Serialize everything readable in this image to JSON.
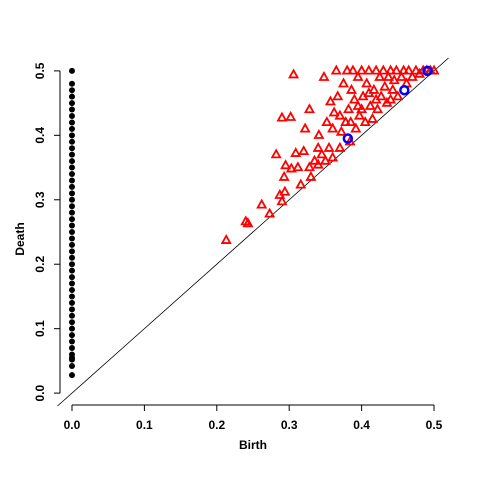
{
  "chart_data": {
    "type": "scatter",
    "x_label": "Birth",
    "y_label": "Death",
    "xlim": [
      -0.02,
      0.52
    ],
    "ylim": [
      -0.02,
      0.52
    ],
    "xticks": [
      {
        "value": 0,
        "label": "0.0"
      },
      0.1,
      0.2,
      0.3,
      0.4,
      0.5
    ],
    "yticks": [
      {
        "value": 0,
        "label": "0.0"
      },
      0.1,
      0.2,
      0.3,
      0.4,
      0.5
    ],
    "diagonal": true,
    "series": [
      {
        "color": "#000000",
        "marker": "circle",
        "x": [
          0,
          0,
          0,
          0,
          0,
          0,
          0,
          0,
          0,
          0,
          0,
          0,
          0,
          0,
          0,
          0,
          0,
          0,
          0,
          0,
          0,
          0,
          0,
          0,
          0,
          0,
          0,
          0,
          0,
          0,
          0,
          0,
          0,
          0,
          0,
          0,
          0,
          0,
          0,
          0,
          0,
          0,
          0,
          0,
          0,
          0,
          0,
          0
        ],
        "values": [
          0.028,
          0.042,
          0.052,
          0.055,
          0.06,
          0.07,
          0.08,
          0.09,
          0.1,
          0.11,
          0.12,
          0.13,
          0.14,
          0.15,
          0.16,
          0.17,
          0.18,
          0.19,
          0.2,
          0.21,
          0.22,
          0.23,
          0.24,
          0.25,
          0.26,
          0.27,
          0.28,
          0.29,
          0.3,
          0.31,
          0.32,
          0.33,
          0.34,
          0.35,
          0.36,
          0.37,
          0.38,
          0.39,
          0.4,
          0.41,
          0.42,
          0.43,
          0.44,
          0.45,
          0.46,
          0.47,
          0.48,
          0.5
        ]
      },
      {
        "color": "#ff0000",
        "marker": "triangle",
        "x": [
          0.213,
          0.24,
          0.243,
          0.262,
          0.273,
          0.282,
          0.29,
          0.302,
          0.306,
          0.287,
          0.29,
          0.294,
          0.293,
          0.295,
          0.303,
          0.309,
          0.312,
          0.316,
          0.32,
          0.322,
          0.328,
          0.328,
          0.33,
          0.335,
          0.34,
          0.341,
          0.345,
          0.348,
          0.35,
          0.352,
          0.355,
          0.357,
          0.36,
          0.362,
          0.365,
          0.367,
          0.37,
          0.372,
          0.375,
          0.378,
          0.38,
          0.382,
          0.384,
          0.386,
          0.388,
          0.39,
          0.392,
          0.395,
          0.397,
          0.4,
          0.402,
          0.405,
          0.407,
          0.41,
          0.412,
          0.415,
          0.417,
          0.42,
          0.422,
          0.425,
          0.427,
          0.43,
          0.432,
          0.435,
          0.437,
          0.44,
          0.443,
          0.445,
          0.448,
          0.45,
          0.455,
          0.458,
          0.462,
          0.465,
          0.47,
          0.475,
          0.48,
          0.485,
          0.49,
          0.495,
          0.5,
          0.36,
          0.37,
          0.395,
          0.41,
          0.34,
          0.385,
          0.4,
          0.42,
          0.44
        ],
        "values": [
          0.237,
          0.266,
          0.263,
          0.292,
          0.278,
          0.37,
          0.427,
          0.428,
          0.494,
          0.307,
          0.297,
          0.312,
          0.335,
          0.353,
          0.348,
          0.372,
          0.35,
          0.323,
          0.375,
          0.41,
          0.35,
          0.44,
          0.335,
          0.36,
          0.354,
          0.4,
          0.37,
          0.49,
          0.36,
          0.42,
          0.38,
          0.452,
          0.365,
          0.435,
          0.5,
          0.46,
          0.38,
          0.405,
          0.48,
          0.42,
          0.5,
          0.44,
          0.39,
          0.47,
          0.5,
          0.455,
          0.41,
          0.49,
          0.43,
          0.5,
          0.46,
          0.42,
          0.48,
          0.5,
          0.445,
          0.425,
          0.47,
          0.5,
          0.44,
          0.49,
          0.46,
          0.5,
          0.475,
          0.45,
          0.49,
          0.5,
          0.47,
          0.485,
          0.5,
          0.46,
          0.49,
          0.5,
          0.48,
          0.5,
          0.49,
          0.5,
          0.495,
          0.5,
          0.5,
          0.5,
          0.5,
          0.41,
          0.43,
          0.445,
          0.465,
          0.38,
          0.42,
          0.44,
          0.455,
          0.455
        ]
      },
      {
        "color": "#0000ff",
        "marker": "circle-open",
        "x": [
          0.381,
          0.459,
          0.491
        ],
        "values": [
          0.395,
          0.47,
          0.5
        ]
      }
    ]
  }
}
